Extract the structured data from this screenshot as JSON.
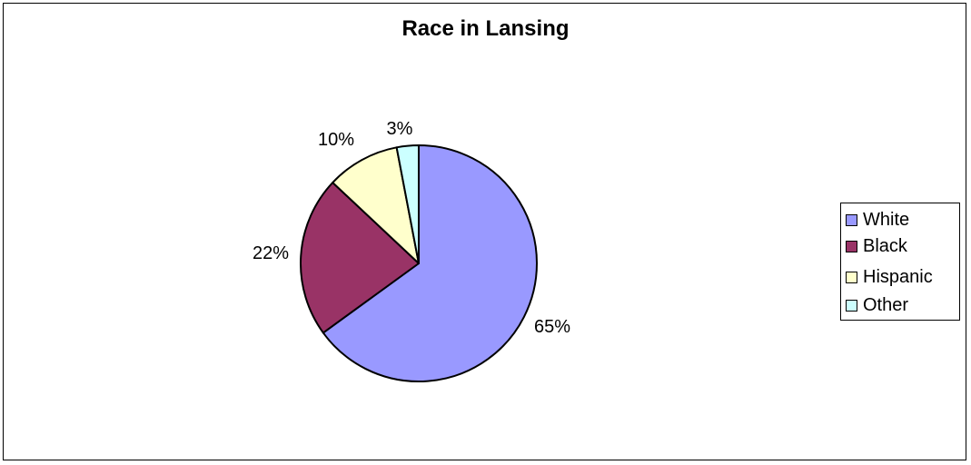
{
  "chart_data": {
    "type": "pie",
    "title": "Race in Lansing",
    "categories": [
      "White",
      "Black",
      "Hispanic",
      "Other"
    ],
    "values": [
      65,
      22,
      10,
      3
    ],
    "labels": [
      "65%",
      "22%",
      "10%",
      "3%"
    ],
    "colors": [
      "#9999FF",
      "#993366",
      "#FFFFCC",
      "#CCFFFF"
    ],
    "legend": "right"
  }
}
